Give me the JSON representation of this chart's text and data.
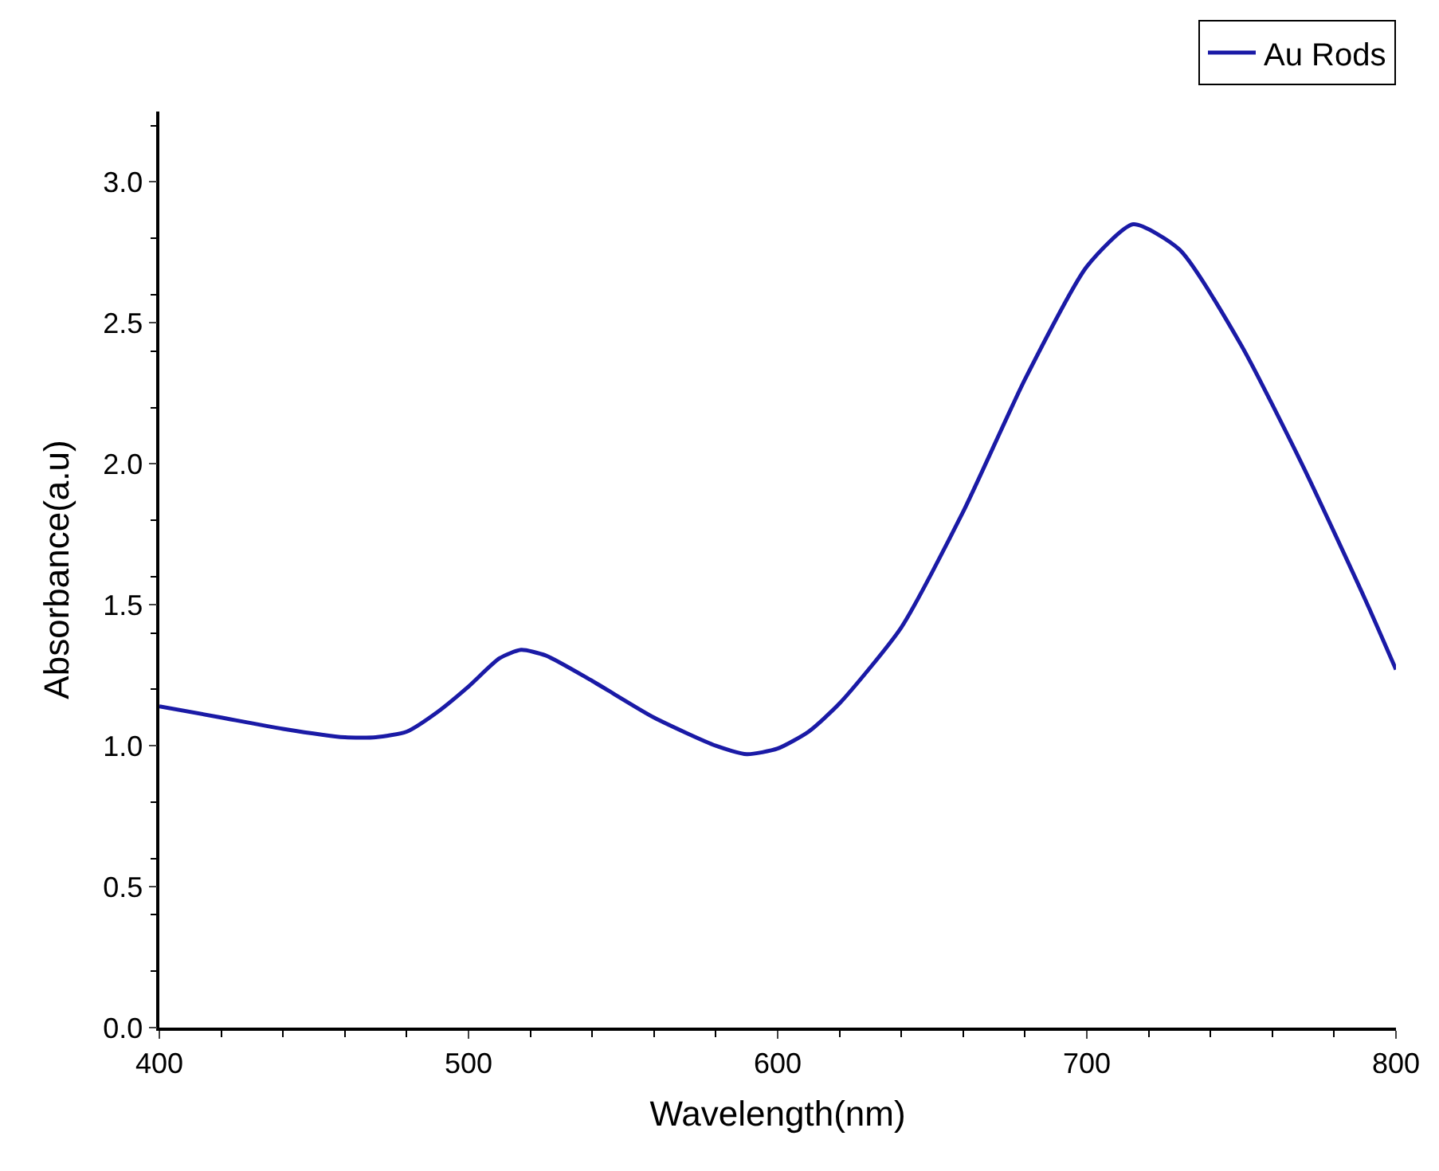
{
  "chart_data": {
    "type": "line",
    "xlabel": "Wavelength(nm)",
    "ylabel": "Absorbance(a.u)",
    "x": [
      400,
      420,
      440,
      460,
      470,
      480,
      490,
      500,
      510,
      517,
      525,
      540,
      560,
      580,
      590,
      600,
      610,
      620,
      640,
      660,
      680,
      700,
      715,
      730,
      750,
      770,
      790,
      800
    ],
    "series": [
      {
        "name": "Au Rods",
        "color": "#1a1aa6",
        "values": [
          1.14,
          1.1,
          1.06,
          1.03,
          1.03,
          1.05,
          1.12,
          1.21,
          1.31,
          1.34,
          1.32,
          1.23,
          1.1,
          1.0,
          0.97,
          0.99,
          1.05,
          1.15,
          1.42,
          1.83,
          2.3,
          2.7,
          2.85,
          2.76,
          2.42,
          1.99,
          1.52,
          1.27
        ]
      }
    ],
    "xlim": [
      400,
      800
    ],
    "xticks": [
      400,
      500,
      600,
      700,
      800
    ],
    "ylim": [
      0,
      3.25
    ],
    "yticks": [
      {
        "value": 0,
        "label": "0.0"
      },
      0.5,
      {
        "value": 1,
        "label": "1.0"
      },
      1.5,
      {
        "value": 2,
        "label": "2.0"
      },
      2.5,
      {
        "value": 3,
        "label": "3.0"
      }
    ],
    "legend": "top right",
    "grid": false
  }
}
